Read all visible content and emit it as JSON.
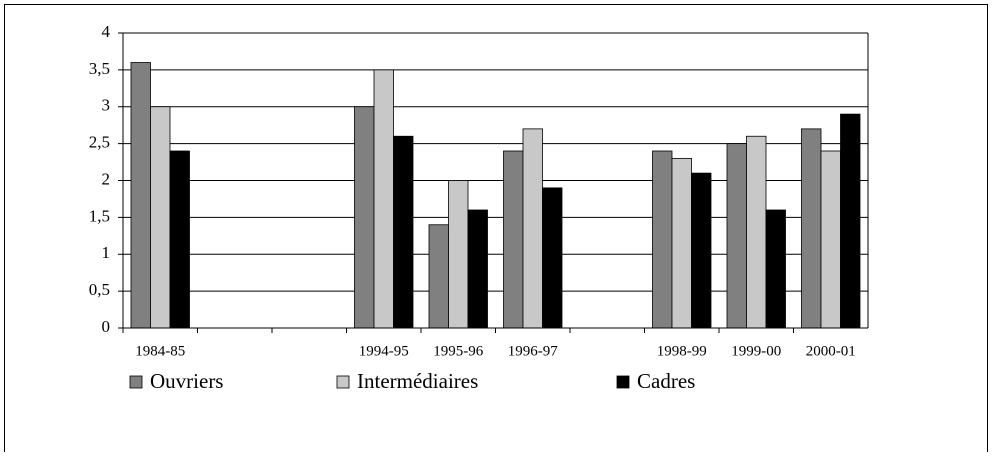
{
  "chart_data": {
    "type": "bar",
    "categories": [
      "1984-85",
      null,
      null,
      "1994-95",
      "1995-96",
      "1996-97",
      null,
      "1998-99",
      "1999-00",
      "2000-01"
    ],
    "series": [
      {
        "name": "Ouvriers",
        "color": "#808080",
        "values": [
          3.6,
          null,
          null,
          3.0,
          1.4,
          2.4,
          null,
          2.4,
          2.5,
          2.7
        ]
      },
      {
        "name": "Intermédiaires",
        "color": "#c8c8c8",
        "values": [
          3.0,
          null,
          null,
          3.5,
          2.0,
          2.7,
          null,
          2.3,
          2.6,
          2.4
        ]
      },
      {
        "name": "Cadres",
        "color": "#000000",
        "values": [
          2.4,
          null,
          null,
          2.6,
          1.6,
          1.9,
          null,
          2.1,
          1.6,
          2.9
        ]
      }
    ],
    "ylim": [
      0,
      4
    ],
    "yticks": [
      0,
      {
        "value": 0.5,
        "label": "0,5"
      },
      1,
      {
        "value": 1.5,
        "label": "1,5"
      },
      2,
      {
        "value": 2.5,
        "label": "2,5"
      },
      3,
      {
        "value": 3.5,
        "label": "3,5"
      },
      4
    ],
    "grid": true,
    "legend": "bottom"
  }
}
